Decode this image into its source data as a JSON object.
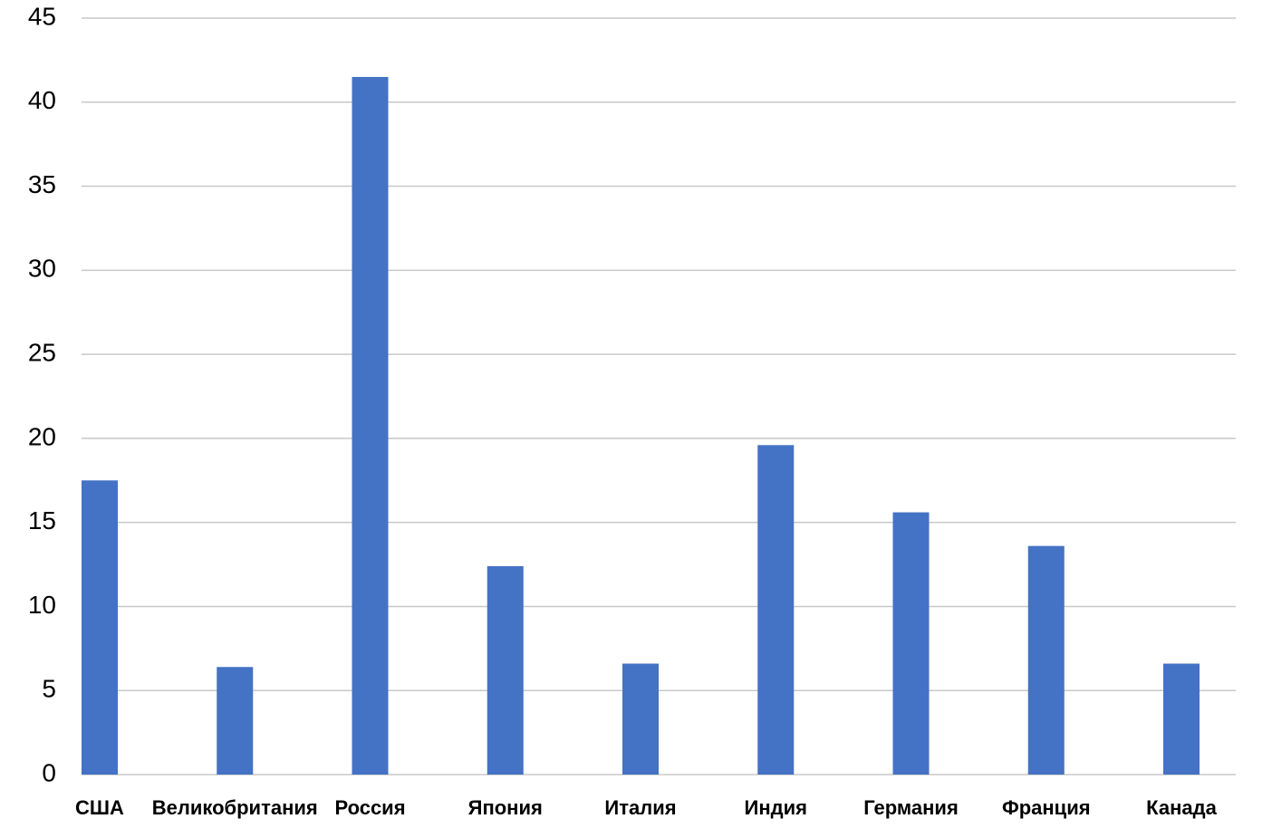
{
  "chart_data": {
    "type": "bar",
    "categories": [
      "США",
      "Великобритания",
      "Россия",
      "Япония",
      "Италия",
      "Индия",
      "Германия",
      "Франция",
      "Канада"
    ],
    "values": [
      17.5,
      6.4,
      41.5,
      12.4,
      6.6,
      19.6,
      15.6,
      13.6,
      6.6
    ],
    "color": "#4472c4",
    "ylim": [
      0,
      45
    ],
    "yticks": [
      0,
      5,
      10,
      15,
      20,
      25,
      30,
      35,
      40,
      45
    ],
    "grid": true
  }
}
